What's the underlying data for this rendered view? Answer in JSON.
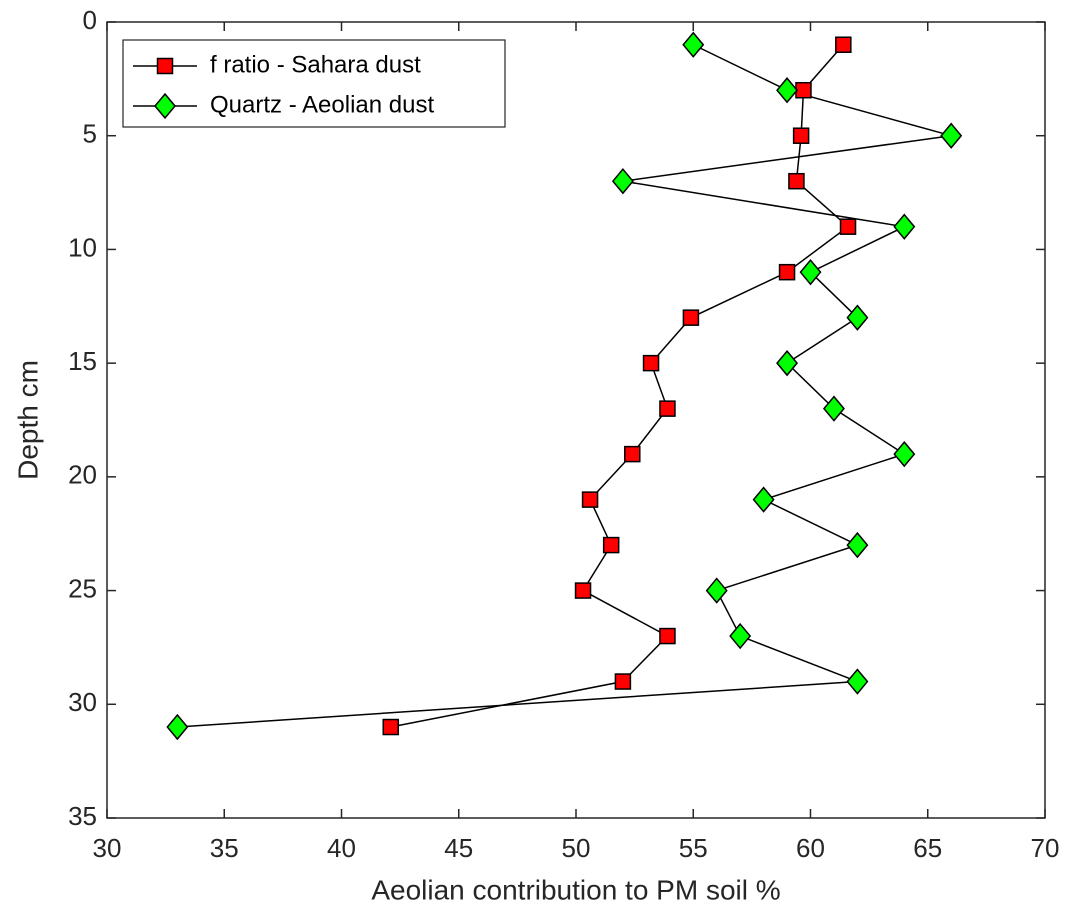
{
  "chart_data": {
    "type": "line",
    "xlabel": "Aeolian contribution to PM soil %",
    "ylabel": "Depth cm",
    "y": [
      1,
      3,
      5,
      7,
      9,
      11,
      13,
      15,
      17,
      19,
      21,
      23,
      25,
      27,
      29,
      31
    ],
    "series": [
      {
        "name": "f ratio - Sahara dust",
        "color": "#ff0000",
        "marker": "square",
        "values": [
          61.4,
          59.7,
          59.6,
          59.4,
          61.6,
          59.0,
          54.9,
          53.2,
          53.9,
          52.4,
          50.6,
          51.5,
          50.3,
          53.9,
          52.0,
          42.1
        ]
      },
      {
        "name": "Quartz - Aeolian dust",
        "color": "#00ff00",
        "marker": "diamond",
        "values": [
          55,
          59,
          66,
          52,
          64,
          60,
          62,
          59,
          61,
          64,
          58,
          62,
          56,
          57,
          62,
          33
        ]
      }
    ],
    "xlim": [
      30,
      70
    ],
    "xticks": [
      30,
      35,
      40,
      45,
      50,
      55,
      60,
      65,
      70
    ],
    "ylim": [
      0,
      35
    ],
    "yticks": [
      0,
      5,
      10,
      15,
      20,
      25,
      30,
      35
    ],
    "y_reversed": true,
    "legend": "top-left"
  }
}
